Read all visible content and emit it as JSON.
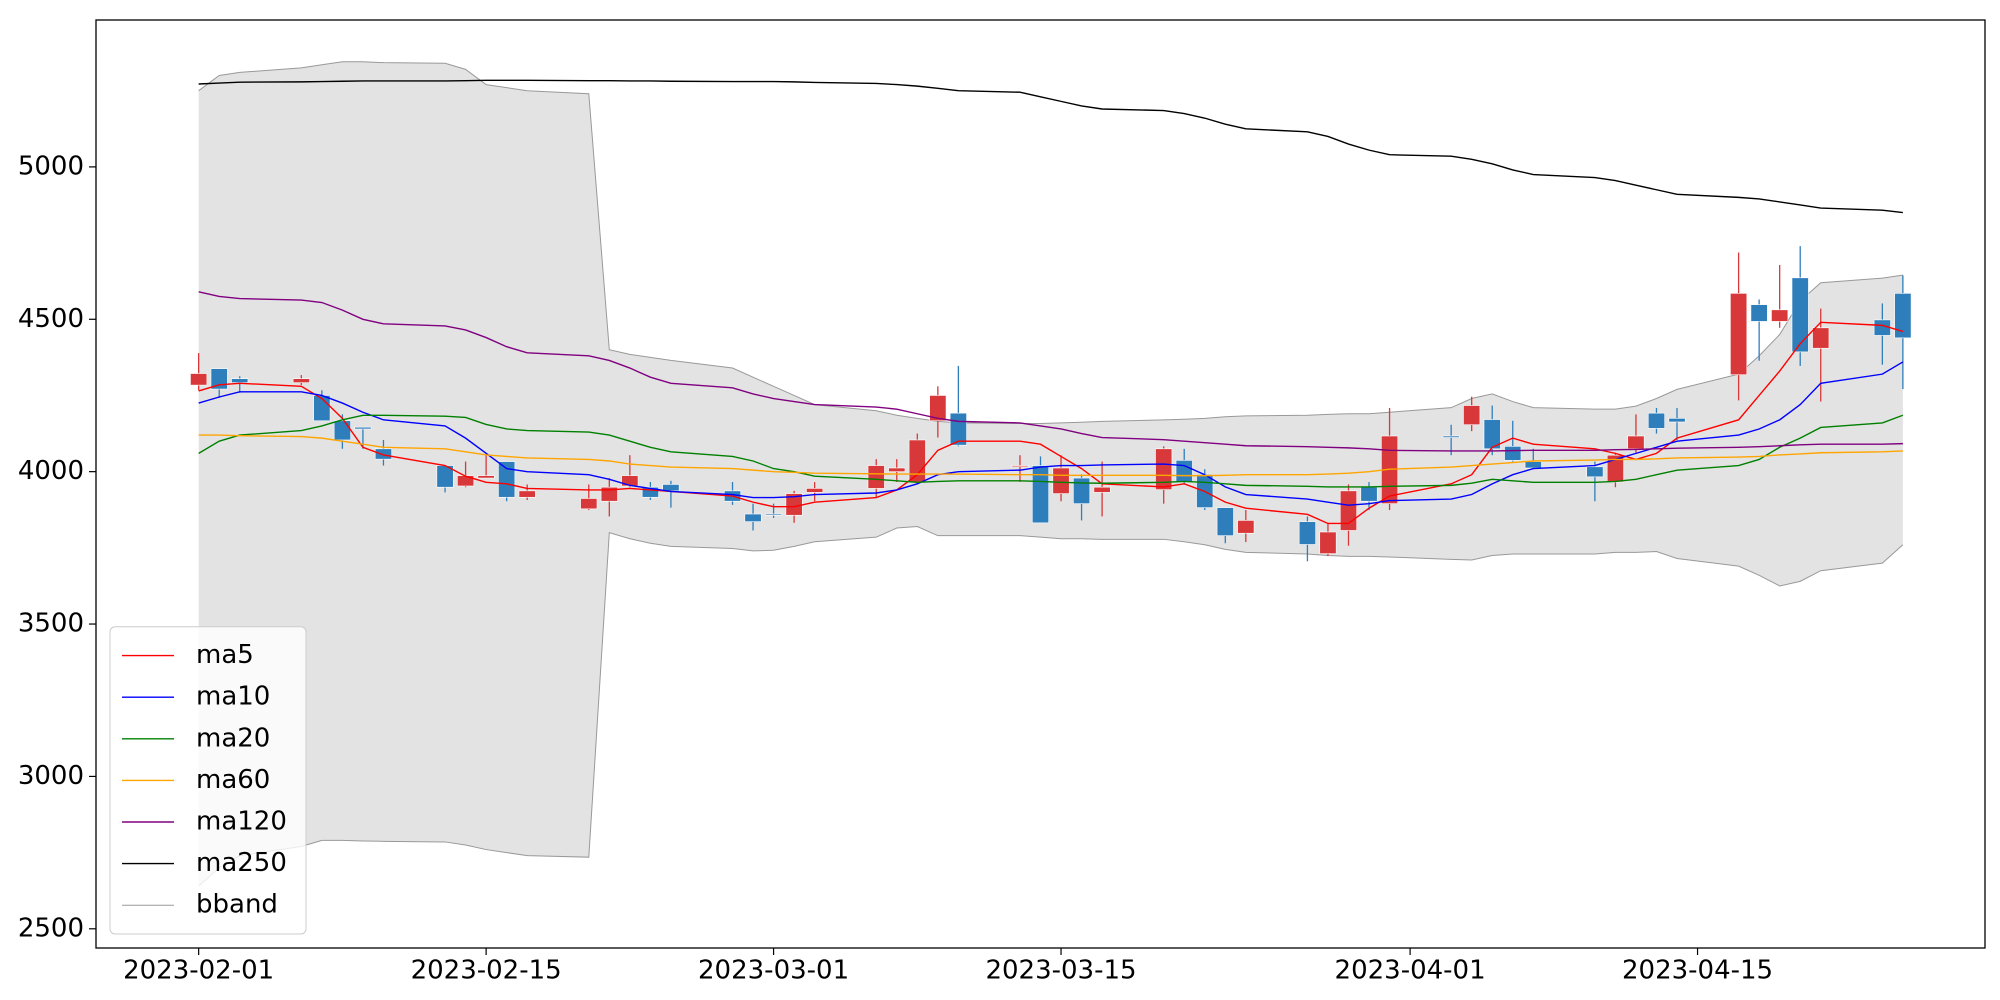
{
  "chart_data": {
    "type": "candlestick",
    "x": [
      "2023-02-01",
      "2023-02-02",
      "2023-02-03",
      "2023-02-06",
      "2023-02-07",
      "2023-02-08",
      "2023-02-09",
      "2023-02-10",
      "2023-02-13",
      "2023-02-14",
      "2023-02-15",
      "2023-02-16",
      "2023-02-17",
      "2023-02-20",
      "2023-02-21",
      "2023-02-22",
      "2023-02-23",
      "2023-02-24",
      "2023-02-27",
      "2023-02-28",
      "2023-03-01",
      "2023-03-02",
      "2023-03-03",
      "2023-03-06",
      "2023-03-07",
      "2023-03-08",
      "2023-03-09",
      "2023-03-10",
      "2023-03-13",
      "2023-03-14",
      "2023-03-15",
      "2023-03-16",
      "2023-03-17",
      "2023-03-20",
      "2023-03-21",
      "2023-03-22",
      "2023-03-23",
      "2023-03-24",
      "2023-03-27",
      "2023-03-28",
      "2023-03-29",
      "2023-03-30",
      "2023-03-31",
      "2023-04-03",
      "2023-04-04",
      "2023-04-05",
      "2023-04-06",
      "2023-04-07",
      "2023-04-10",
      "2023-04-11",
      "2023-04-12",
      "2023-04-13",
      "2023-04-14",
      "2023-04-17",
      "2023-04-18",
      "2023-04-19",
      "2023-04-20",
      "2023-04-21",
      "2023-04-24",
      "2023-04-25"
    ],
    "open": [
      4284,
      4338,
      4305,
      4292,
      4250,
      4167,
      4146,
      4075,
      4020,
      3953,
      3979,
      4033,
      3916,
      3878,
      3903,
      3953,
      3949,
      3958,
      3937,
      3861,
      3861,
      3857,
      3932,
      3945,
      4000,
      3966,
      4167,
      4192,
      4016,
      4020,
      3928,
      3979,
      3932,
      3941,
      4037,
      3991,
      3882,
      3798,
      3836,
      3731,
      3807,
      3949,
      3895,
      4117,
      4154,
      4171,
      4083,
      4033,
      4016,
      3966,
      4075,
      4192,
      4175,
      4318,
      4548,
      4493,
      4636,
      4405,
      4498,
      4585
    ],
    "high": [
      4389,
      4338,
      4313,
      4317,
      4267,
      4188,
      4146,
      4104,
      4020,
      4033,
      4054,
      4033,
      3958,
      3958,
      3979,
      4054,
      3966,
      3970,
      3966,
      3895,
      3895,
      3937,
      3966,
      4041,
      4041,
      4125,
      4280,
      4347,
      4054,
      4050,
      4054,
      3991,
      4033,
      4083,
      4075,
      4008,
      3882,
      3874,
      3853,
      3832,
      3958,
      3966,
      4209,
      4154,
      4246,
      4217,
      4167,
      4075,
      4033,
      4062,
      4188,
      4209,
      4209,
      4719,
      4565,
      4678,
      4740,
      4535,
      4552,
      4644
    ],
    "low": [
      4267,
      4242,
      4259,
      4284,
      4167,
      4075,
      4075,
      4020,
      3932,
      3949,
      3979,
      3903,
      3907,
      3874,
      3853,
      3949,
      3907,
      3882,
      3891,
      3807,
      3848,
      3832,
      3903,
      3916,
      3966,
      3958,
      4112,
      4083,
      3966,
      3832,
      3903,
      3840,
      3853,
      3895,
      3958,
      3874,
      3765,
      3769,
      3706,
      3723,
      3757,
      3874,
      3874,
      4054,
      4133,
      4054,
      4033,
      4008,
      3903,
      3949,
      4062,
      4125,
      4104,
      4234,
      4364,
      4472,
      4347,
      4230,
      4351,
      4271
    ],
    "close": [
      4322,
      4271,
      4292,
      4305,
      4167,
      4104,
      4140,
      4041,
      3949,
      3987,
      3987,
      3916,
      3937,
      3912,
      3949,
      3987,
      3916,
      3937,
      3903,
      3836,
      3857,
      3928,
      3945,
      4020,
      4012,
      4104,
      4250,
      4087,
      4020,
      3832,
      4012,
      3895,
      3949,
      4075,
      3966,
      3882,
      3790,
      3840,
      3761,
      3802,
      3937,
      3903,
      4117,
      4112,
      4217,
      4075,
      4037,
      4012,
      3983,
      4054,
      4117,
      4142,
      4163,
      4585,
      4493,
      4531,
      4393,
      4472,
      4447,
      4439
    ],
    "up_color": "#d8383a",
    "down_color": "#2f7ebc",
    "series": [
      {
        "name": "ma5",
        "color": "#ff0000",
        "values": [
          4265,
          4285,
          4290,
          4280,
          4240,
          4175,
          4080,
          4055,
          4020,
          3985,
          3965,
          3960,
          3945,
          3940,
          3940,
          3945,
          3940,
          3935,
          3920,
          3900,
          3885,
          3885,
          3900,
          3915,
          3940,
          3990,
          4070,
          4100,
          4100,
          4090,
          4050,
          4010,
          3960,
          3950,
          3960,
          3935,
          3900,
          3880,
          3860,
          3830,
          3830,
          3880,
          3920,
          3960,
          3990,
          4080,
          4110,
          4090,
          4075,
          4060,
          4040,
          4060,
          4110,
          4170,
          4250,
          4330,
          4420,
          4490,
          4480,
          4460
        ]
      },
      {
        "name": "ma10",
        "color": "#0000ff",
        "values": [
          4225,
          4245,
          4262,
          4262,
          4250,
          4225,
          4195,
          4170,
          4150,
          4110,
          4060,
          4010,
          4000,
          3990,
          3975,
          3955,
          3945,
          3935,
          3925,
          3915,
          3915,
          3918,
          3925,
          3930,
          3940,
          3960,
          3990,
          4000,
          4005,
          4015,
          4020,
          4020,
          4022,
          4025,
          4020,
          3990,
          3950,
          3925,
          3910,
          3900,
          3890,
          3895,
          3905,
          3910,
          3925,
          3960,
          3990,
          4010,
          4020,
          4040,
          4060,
          4080,
          4100,
          4120,
          4140,
          4170,
          4220,
          4290,
          4320,
          4360
        ]
      },
      {
        "name": "ma20",
        "color": "#008000",
        "values": [
          4060,
          4100,
          4120,
          4135,
          4150,
          4170,
          4185,
          4185,
          4182,
          4178,
          4155,
          4140,
          4135,
          4130,
          4120,
          4100,
          4080,
          4065,
          4050,
          4035,
          4010,
          4000,
          3985,
          3975,
          3970,
          3965,
          3968,
          3970,
          3970,
          3968,
          3965,
          3963,
          3962,
          3965,
          3968,
          3965,
          3960,
          3955,
          3952,
          3950,
          3950,
          3950,
          3952,
          3955,
          3962,
          3975,
          3970,
          3965,
          3965,
          3968,
          3975,
          3990,
          4005,
          4020,
          4040,
          4080,
          4110,
          4145,
          4160,
          4185
        ]
      },
      {
        "name": "ma60",
        "color": "#ffa500",
        "values": [
          4120,
          4120,
          4118,
          4115,
          4110,
          4100,
          4090,
          4080,
          4075,
          4065,
          4055,
          4050,
          4045,
          4040,
          4035,
          4025,
          4020,
          4015,
          4010,
          4005,
          4000,
          3998,
          3995,
          3993,
          3992,
          3992,
          3992,
          3992,
          3990,
          3990,
          3988,
          3988,
          3988,
          3988,
          3987,
          3987,
          3988,
          3990,
          3990,
          3992,
          3995,
          4000,
          4008,
          4015,
          4020,
          4025,
          4030,
          4035,
          4038,
          4040,
          4040,
          4042,
          4045,
          4048,
          4050,
          4055,
          4058,
          4062,
          4065,
          4068
        ]
      },
      {
        "name": "ma120",
        "color": "#800080",
        "values": [
          4590,
          4575,
          4568,
          4563,
          4555,
          4530,
          4500,
          4485,
          4478,
          4465,
          4440,
          4410,
          4390,
          4380,
          4365,
          4340,
          4310,
          4290,
          4275,
          4255,
          4240,
          4230,
          4220,
          4212,
          4205,
          4190,
          4175,
          4165,
          4160,
          4150,
          4140,
          4125,
          4112,
          4105,
          4100,
          4095,
          4090,
          4085,
          4082,
          4080,
          4078,
          4075,
          4070,
          4068,
          4068,
          4068,
          4069,
          4070,
          4070,
          4072,
          4073,
          4075,
          4077,
          4080,
          4082,
          4085,
          4088,
          4090,
          4090,
          4092
        ]
      },
      {
        "name": "ma250",
        "color": "#000000",
        "values": [
          5272,
          5275,
          5278,
          5279,
          5280,
          5281,
          5282,
          5282,
          5282,
          5283,
          5284,
          5284,
          5284,
          5283,
          5283,
          5282,
          5282,
          5281,
          5280,
          5280,
          5280,
          5279,
          5277,
          5274,
          5270,
          5265,
          5258,
          5250,
          5245,
          5230,
          5215,
          5200,
          5190,
          5185,
          5175,
          5160,
          5140,
          5125,
          5115,
          5100,
          5075,
          5055,
          5040,
          5035,
          5025,
          5010,
          4990,
          4975,
          4965,
          4955,
          4940,
          4925,
          4910,
          4900,
          4895,
          4885,
          4875,
          4865,
          4858,
          4850
        ]
      }
    ],
    "band": {
      "name": "bband",
      "color": "#999999",
      "fill": "#e3e3e3",
      "upper": [
        5250,
        5300,
        5310,
        5325,
        5335,
        5345,
        5345,
        5342,
        5340,
        5320,
        5270,
        5260,
        5250,
        5240,
        4400,
        4385,
        4375,
        4365,
        4340,
        4310,
        4280,
        4250,
        4220,
        4200,
        4185,
        4175,
        4165,
        4160,
        4158,
        4158,
        4160,
        4162,
        4165,
        4170,
        4172,
        4175,
        4180,
        4183,
        4185,
        4188,
        4190,
        4190,
        4195,
        4210,
        4240,
        4255,
        4230,
        4210,
        4205,
        4205,
        4215,
        4240,
        4270,
        4320,
        4380,
        4450,
        4560,
        4620,
        4635,
        4645
      ],
      "lower": [
        2640,
        2700,
        2740,
        2770,
        2790,
        2790,
        2788,
        2787,
        2785,
        2775,
        2760,
        2750,
        2740,
        2735,
        3800,
        3780,
        3765,
        3755,
        3748,
        3740,
        3742,
        3755,
        3770,
        3785,
        3815,
        3820,
        3790,
        3790,
        3790,
        3785,
        3780,
        3780,
        3778,
        3778,
        3770,
        3760,
        3745,
        3735,
        3730,
        3725,
        3722,
        3722,
        3720,
        3712,
        3710,
        3725,
        3730,
        3730,
        3730,
        3735,
        3735,
        3738,
        3715,
        3690,
        3660,
        3625,
        3640,
        3675,
        3700,
        3760
      ]
    },
    "xlim": [
      "2023-01-27",
      "2023-04-29"
    ],
    "xticks": [
      "2023-02-01",
      "2023-02-15",
      "2023-03-01",
      "2023-03-15",
      "2023-04-01",
      "2023-04-15"
    ],
    "ylim": [
      2437,
      5482
    ],
    "yticks": [
      2500,
      3000,
      3500,
      4000,
      4500,
      5000
    ],
    "grid": false,
    "legend": "lower left"
  }
}
